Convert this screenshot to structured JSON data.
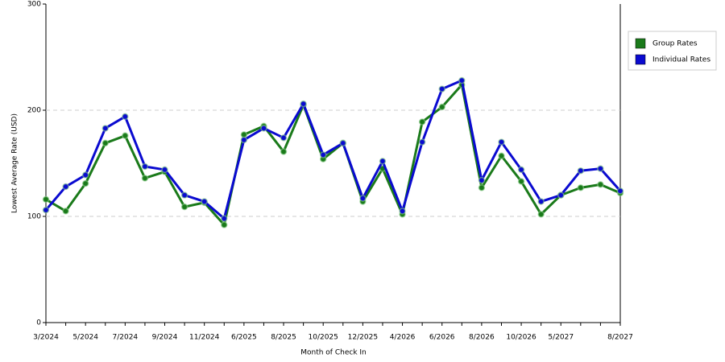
{
  "chart_data": {
    "type": "line",
    "x_label": "Month of Check In",
    "y_label": "Lowest Average Rate (USD)",
    "categories": [
      "3/2024",
      null,
      "5/2024",
      null,
      "7/2024",
      null,
      "9/2024",
      null,
      "11/2024",
      null,
      "6/2025",
      null,
      "8/2025",
      null,
      "10/2025",
      null,
      "12/2025",
      null,
      "4/2026",
      null,
      "6/2026",
      null,
      "8/2026",
      null,
      "10/2026",
      null,
      "5/2027",
      null,
      null,
      "8/2027"
    ],
    "series": [
      {
        "name": "Group Rates",
        "color": "#1a7a1a",
        "values": [
          116,
          105,
          131,
          169,
          176,
          136,
          142,
          109,
          113,
          92,
          177,
          185,
          161,
          205,
          154,
          169,
          114,
          145,
          102,
          189,
          203,
          224,
          127,
          157,
          133,
          102,
          120,
          127,
          130,
          122
        ]
      },
      {
        "name": "Individual Rates",
        "color": "#0a0ad0",
        "values": [
          106,
          128,
          139,
          183,
          194,
          147,
          144,
          120,
          114,
          98,
          172,
          183,
          174,
          206,
          158,
          169,
          117,
          152,
          105,
          170,
          220,
          228,
          134,
          170,
          144,
          114,
          120,
          143,
          145,
          124
        ]
      }
    ],
    "ylim": [
      0,
      300
    ],
    "yticks": [
      0,
      100,
      200,
      300
    ],
    "grid": true
  }
}
